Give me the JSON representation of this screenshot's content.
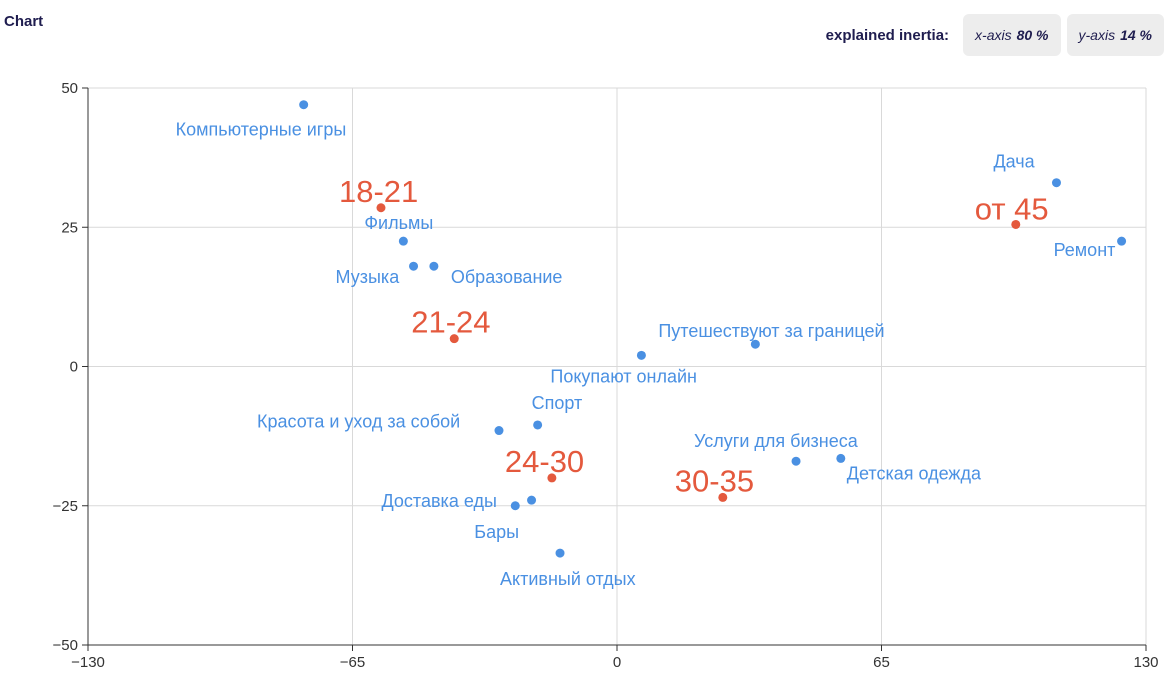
{
  "header": {
    "title": "Chart",
    "inertia_label": "explained inertia:",
    "x_axis_label": "x-axis",
    "x_axis_value": "80 %",
    "y_axis_label": "y-axis",
    "y_axis_value": "14 %"
  },
  "colors": {
    "blue": "#4a90e2",
    "red": "#e4593d",
    "grid": "#d9d9d9",
    "axis": "#333333"
  },
  "chart_data": {
    "type": "scatter",
    "title": "",
    "xlabel": "",
    "ylabel": "",
    "xlim": [
      -130,
      130
    ],
    "ylim": [
      -50,
      50
    ],
    "x_ticks": [
      -130,
      -65,
      0,
      65,
      130
    ],
    "y_ticks": [
      50,
      25,
      0,
      -25,
      -50
    ],
    "x_tick_labels": [
      "−130",
      "−65",
      "0",
      "65",
      "130"
    ],
    "y_tick_labels": [
      "50",
      "25",
      "0",
      "−25",
      "−50"
    ],
    "grid": true,
    "series": [
      {
        "color": "#4a90e2",
        "points": [
          {
            "label": "Компьютерные игры",
            "x": -77,
            "y": 47
          },
          {
            "label": "Фильмы",
            "x": -52.5,
            "y": 22.5
          },
          {
            "label": "Музыка",
            "x": -50,
            "y": 18
          },
          {
            "label": "Образование",
            "x": -45,
            "y": 18
          },
          {
            "label": "Дача",
            "x": 108,
            "y": 33
          },
          {
            "label": "Ремонт",
            "x": 124,
            "y": 22.5
          },
          {
            "label": "Путешествуют за границей",
            "x": 34,
            "y": 4
          },
          {
            "label": "Покупают онлайн",
            "x": 6,
            "y": 2
          },
          {
            "label": "Красота и уход за собой",
            "x": -29,
            "y": -11.5
          },
          {
            "label": "Спорт",
            "x": -19.5,
            "y": -10.5
          },
          {
            "label": "Услуги для бизнеса",
            "x": 44,
            "y": -17
          },
          {
            "label": "Детская одежда",
            "x": 55,
            "y": -16.5
          },
          {
            "label": "Доставка еды",
            "x": -21,
            "y": -24
          },
          {
            "label": "Бары",
            "x": -25,
            "y": -25
          },
          {
            "label": "Активный отдых",
            "x": -14,
            "y": -33.5
          }
        ]
      },
      {
        "color": "#e4593d",
        "points": [
          {
            "label": "18-21",
            "x": -58,
            "y": 28.5
          },
          {
            "label": "от 45",
            "x": 98,
            "y": 25.5
          },
          {
            "label": "21-24",
            "x": -40,
            "y": 5
          },
          {
            "label": "24-30",
            "x": -16,
            "y": -20
          },
          {
            "label": "30-35",
            "x": 26,
            "y": -23.5
          }
        ]
      }
    ]
  }
}
